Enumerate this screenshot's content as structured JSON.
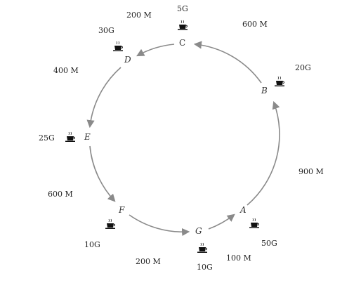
{
  "colors": {
    "arrow": "#8a8a8a",
    "text": "#222222",
    "icon": "#111111"
  },
  "icon": "coffee-cup-icon",
  "stations": [
    {
      "id": "A",
      "label": "A",
      "amount": "50G"
    },
    {
      "id": "B",
      "label": "B",
      "amount": "20G"
    },
    {
      "id": "C",
      "label": "C",
      "amount": "5G"
    },
    {
      "id": "D",
      "label": "D",
      "amount": "30G"
    },
    {
      "id": "E",
      "label": "E",
      "amount": "25G"
    },
    {
      "id": "F",
      "label": "F",
      "amount": "10G"
    },
    {
      "id": "G",
      "label": "G",
      "amount": "10G"
    }
  ],
  "distances": [
    {
      "from": "A",
      "to": "B",
      "label": "900 M"
    },
    {
      "from": "B",
      "to": "C",
      "label": "600 M"
    },
    {
      "from": "C",
      "to": "D",
      "label": "200 M"
    },
    {
      "from": "D",
      "to": "E",
      "label": "400 M"
    },
    {
      "from": "E",
      "to": "F",
      "label": "600 M"
    },
    {
      "from": "F",
      "to": "G",
      "label": "200 M"
    },
    {
      "from": "G",
      "to": "A",
      "label": "100 M"
    }
  ]
}
